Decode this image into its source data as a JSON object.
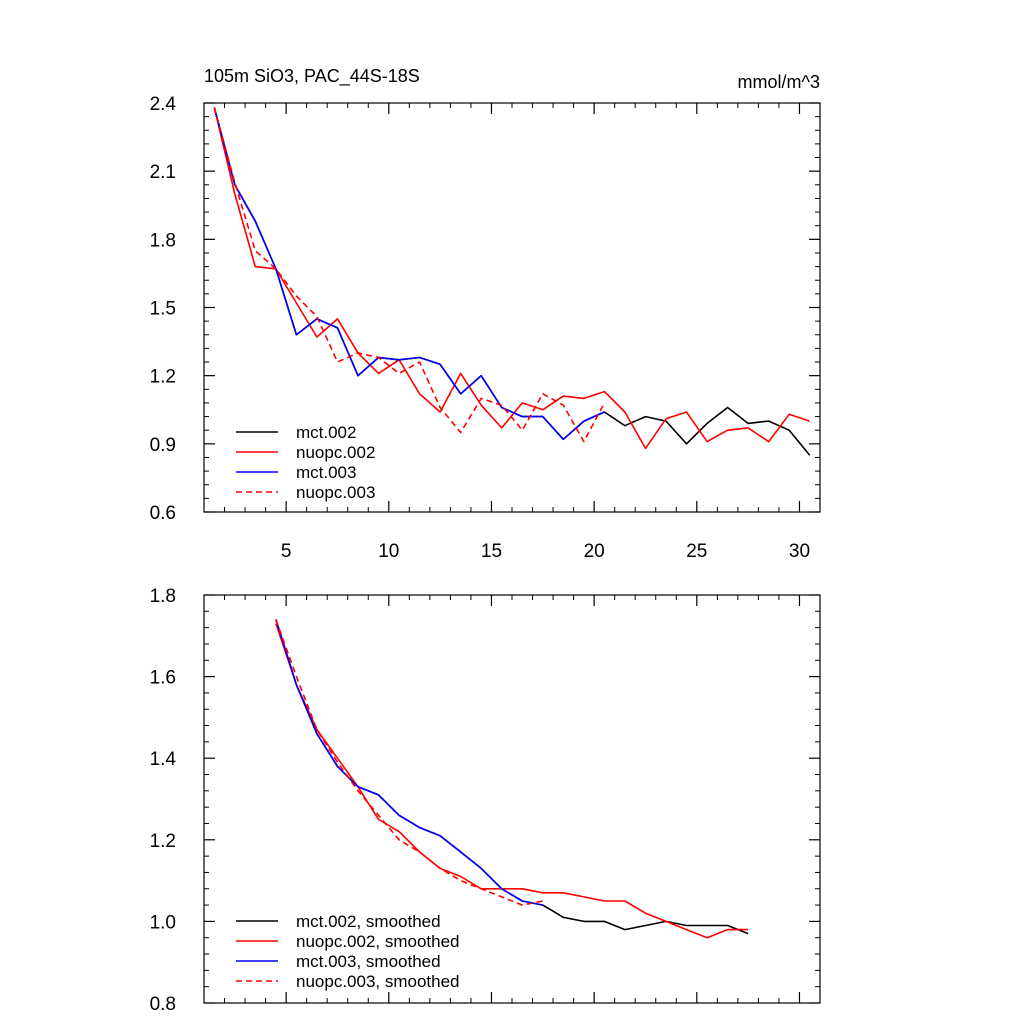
{
  "figure": {
    "title_left": "105m SiO3, PAC_44S-18S",
    "title_right": "mmol/m^3"
  },
  "chart_data": [
    {
      "type": "line",
      "title": "105m SiO3, PAC_44S-18S",
      "units": "mmol/m^3",
      "xlabel": "",
      "ylabel": "",
      "xlim": [
        1,
        31
      ],
      "ylim": [
        0.6,
        2.4
      ],
      "xticks": [
        5,
        10,
        15,
        20,
        25,
        30
      ],
      "yticks": [
        0.6,
        0.9,
        1.2,
        1.5,
        1.8,
        2.1,
        2.4
      ],
      "ytick_labels": [
        "0.6",
        "0.9",
        "1.2",
        "1.5",
        "1.8",
        "2.1",
        "2.4"
      ],
      "grid": false,
      "legend_position": "bottom-left",
      "series": [
        {
          "name": "mct.002",
          "color": "#000000",
          "dash": "solid",
          "x": [
            1.5,
            2.5,
            3.5,
            4.5,
            5.5,
            6.5,
            7.5,
            8.5,
            9.5,
            10.5,
            11.5,
            12.5,
            13.5,
            14.5,
            15.5,
            16.5,
            17.5,
            18.5,
            19.5,
            20.5,
            21.5,
            22.5,
            23.5,
            24.5,
            25.5,
            26.5,
            27.5,
            28.5,
            29.5,
            30.5
          ],
          "y": [
            2.38,
            2.04,
            1.88,
            1.67,
            1.38,
            1.45,
            1.41,
            1.2,
            1.28,
            1.27,
            1.28,
            1.25,
            1.12,
            1.2,
            1.06,
            1.02,
            1.02,
            0.92,
            1.0,
            1.04,
            0.98,
            1.02,
            1.0,
            0.9,
            0.99,
            1.06,
            0.99,
            1.0,
            0.96,
            0.85
          ]
        },
        {
          "name": "nuopc.002",
          "color": "#ff0000",
          "dash": "solid",
          "x": [
            1.5,
            2.5,
            3.5,
            4.5,
            5.5,
            6.5,
            7.5,
            8.5,
            9.5,
            10.5,
            11.5,
            12.5,
            13.5,
            14.5,
            15.5,
            16.5,
            17.5,
            18.5,
            19.5,
            20.5,
            21.5,
            22.5,
            23.5,
            24.5,
            25.5,
            26.5,
            27.5,
            28.5,
            29.5,
            30.5
          ],
          "y": [
            2.38,
            2.0,
            1.68,
            1.67,
            1.52,
            1.37,
            1.45,
            1.3,
            1.21,
            1.27,
            1.12,
            1.04,
            1.21,
            1.07,
            0.97,
            1.08,
            1.05,
            1.11,
            1.1,
            1.13,
            1.04,
            0.88,
            1.01,
            1.04,
            0.91,
            0.96,
            0.97,
            0.91,
            1.03,
            1.0
          ]
        },
        {
          "name": "mct.003",
          "color": "#0000ff",
          "dash": "solid",
          "x": [
            1.5,
            2.5,
            3.5,
            4.5,
            5.5,
            6.5,
            7.5,
            8.5,
            9.5,
            10.5,
            11.5,
            12.5,
            13.5,
            14.5,
            15.5,
            16.5,
            17.5,
            18.5,
            19.5,
            20.5
          ],
          "y": [
            2.38,
            2.04,
            1.88,
            1.67,
            1.38,
            1.45,
            1.41,
            1.2,
            1.28,
            1.27,
            1.28,
            1.25,
            1.12,
            1.2,
            1.06,
            1.02,
            1.02,
            0.92,
            1.0,
            1.04
          ]
        },
        {
          "name": "nuopc.003",
          "color": "#ff0000",
          "dash": "dashed",
          "x": [
            1.5,
            2.5,
            3.5,
            4.5,
            5.5,
            6.5,
            7.5,
            8.5,
            9.5,
            10.5,
            11.5,
            12.5,
            13.5,
            14.5,
            15.5,
            16.5,
            17.5,
            18.5,
            19.5,
            20.5
          ],
          "y": [
            2.38,
            2.05,
            1.75,
            1.67,
            1.55,
            1.46,
            1.26,
            1.3,
            1.28,
            1.21,
            1.26,
            1.06,
            0.95,
            1.1,
            1.07,
            0.96,
            1.12,
            1.07,
            0.91,
            1.08
          ]
        }
      ]
    },
    {
      "type": "line",
      "title": "",
      "xlabel": "",
      "ylabel": "",
      "xlim": [
        1,
        31
      ],
      "ylim": [
        0.8,
        1.8
      ],
      "xticks": [
        5,
        10,
        15,
        20,
        25,
        30
      ],
      "yticks": [
        0.8,
        1.0,
        1.2,
        1.4,
        1.6,
        1.8
      ],
      "ytick_labels": [
        "0.8",
        "1.0",
        "1.2",
        "1.4",
        "1.6",
        "1.8"
      ],
      "grid": false,
      "legend_position": "bottom-left",
      "series": [
        {
          "name": "mct.002, smoothed",
          "color": "#000000",
          "dash": "solid",
          "x": [
            4.5,
            5.5,
            6.5,
            7.5,
            8.5,
            9.5,
            10.5,
            11.5,
            12.5,
            13.5,
            14.5,
            15.5,
            16.5,
            17.5,
            18.5,
            19.5,
            20.5,
            21.5,
            22.5,
            23.5,
            24.5,
            25.5,
            26.5,
            27.5
          ],
          "y": [
            1.74,
            1.58,
            1.46,
            1.38,
            1.33,
            1.31,
            1.26,
            1.23,
            1.21,
            1.17,
            1.13,
            1.08,
            1.05,
            1.04,
            1.01,
            1.0,
            1.0,
            0.98,
            0.99,
            1.0,
            0.99,
            0.99,
            0.99,
            0.97
          ]
        },
        {
          "name": "nuopc.002, smoothed",
          "color": "#ff0000",
          "dash": "solid",
          "x": [
            4.5,
            5.5,
            6.5,
            7.5,
            8.5,
            9.5,
            10.5,
            11.5,
            12.5,
            13.5,
            14.5,
            15.5,
            16.5,
            17.5,
            18.5,
            19.5,
            20.5,
            21.5,
            22.5,
            23.5,
            24.5,
            25.5,
            26.5,
            27.5
          ],
          "y": [
            1.73,
            1.58,
            1.47,
            1.4,
            1.33,
            1.25,
            1.22,
            1.17,
            1.13,
            1.11,
            1.08,
            1.08,
            1.08,
            1.07,
            1.07,
            1.06,
            1.05,
            1.05,
            1.02,
            1.0,
            0.98,
            0.96,
            0.98,
            0.98
          ]
        },
        {
          "name": "mct.003, smoothed",
          "color": "#0000ff",
          "dash": "solid",
          "x": [
            4.5,
            5.5,
            6.5,
            7.5,
            8.5,
            9.5,
            10.5,
            11.5,
            12.5,
            13.5,
            14.5,
            15.5,
            16.5,
            17.5
          ],
          "y": [
            1.74,
            1.58,
            1.46,
            1.38,
            1.33,
            1.31,
            1.26,
            1.23,
            1.21,
            1.17,
            1.13,
            1.08,
            1.05,
            1.04
          ]
        },
        {
          "name": "nuopc.003, smoothed",
          "color": "#ff0000",
          "dash": "dashed",
          "x": [
            4.5,
            5.5,
            6.5,
            7.5,
            8.5,
            9.5,
            10.5,
            11.5,
            12.5,
            13.5,
            14.5,
            15.5,
            16.5,
            17.5
          ],
          "y": [
            1.74,
            1.6,
            1.47,
            1.39,
            1.32,
            1.26,
            1.2,
            1.17,
            1.13,
            1.1,
            1.08,
            1.06,
            1.04,
            1.05
          ]
        }
      ]
    }
  ]
}
